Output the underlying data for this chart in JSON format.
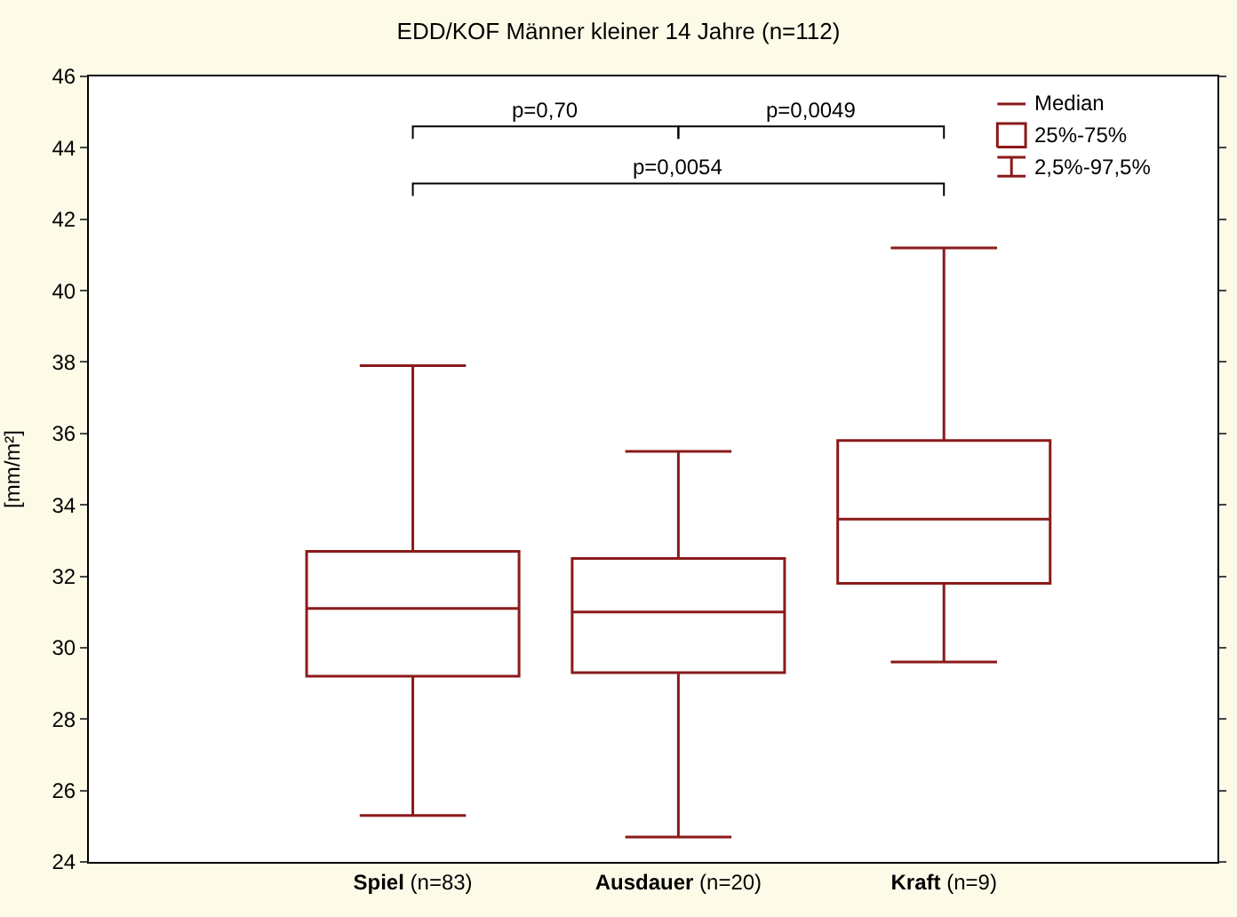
{
  "chart_data": {
    "type": "box",
    "title": "EDD/KOF Männer kleiner 14 Jahre (n=112)",
    "ylabel": "[mm/m²]",
    "categories": [
      "Spiel (n=83)",
      "Ausdauer (n=20)",
      "Kraft (n=9)"
    ],
    "color": "#8b1a1a",
    "boxes": [
      {
        "low": 25.3,
        "q1": 29.2,
        "median": 31.1,
        "q3": 32.7,
        "high": 37.9
      },
      {
        "low": 24.7,
        "q1": 29.3,
        "median": 31.0,
        "q3": 32.5,
        "high": 35.5
      },
      {
        "low": 29.6,
        "q1": 31.8,
        "median": 33.6,
        "q3": 35.8,
        "high": 41.2
      }
    ],
    "ylim": [
      24,
      46
    ],
    "yticks": [
      24,
      26,
      28,
      30,
      32,
      34,
      36,
      38,
      40,
      42,
      44,
      46
    ],
    "grid": false,
    "annotations": [
      "p=0,70",
      "p=0,0049",
      "p=0,0054",
      "Median",
      "25%-75%",
      "2,5%-97,5%"
    ]
  }
}
